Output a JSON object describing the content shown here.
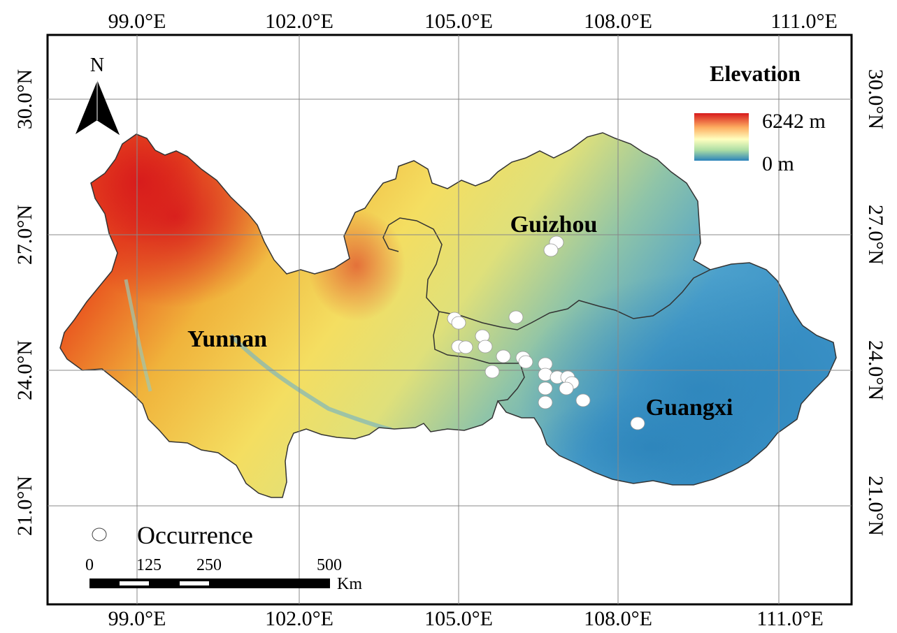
{
  "map": {
    "lon_ticks": [
      "99.0°E",
      "102.0°E",
      "105.0°E",
      "108.0°E",
      "111.0°E"
    ],
    "lat_ticks": [
      "30.0°N",
      "27.0°N",
      "24.0°N",
      "21.0°N"
    ],
    "north_label": "N",
    "provinces": [
      "Guizhou",
      "Yunnan",
      "Guangxi"
    ],
    "legend": {
      "title": "Elevation",
      "max_label": "6242 m",
      "min_label": "0 m",
      "ramp_colors": [
        "#d7191c",
        "#fdae61",
        "#ffffbf",
        "#abdda4",
        "#2b83ba"
      ]
    },
    "occurrence_label": "Occurrence",
    "scale": {
      "ticks": [
        "0",
        "125",
        "250",
        "500"
      ],
      "unit": "Km"
    },
    "colors": {
      "high": "#d7191c",
      "mid": "#f5e86a",
      "low": "#3a94c8",
      "occurrence": "#ffffff"
    }
  }
}
